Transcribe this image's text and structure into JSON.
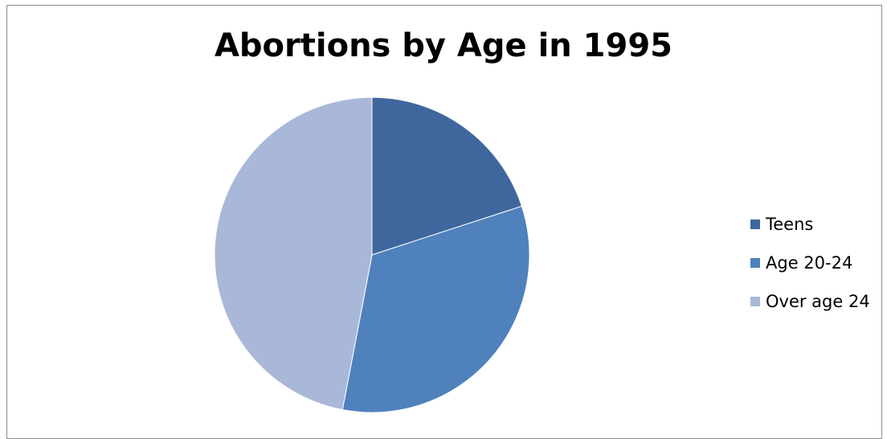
{
  "chart_data": {
    "type": "pie",
    "title": "Abortions by Age in 1995",
    "categories": [
      "Teens",
      "Age 20-24",
      "Over age 24"
    ],
    "values": [
      20,
      33,
      47
    ],
    "colors": [
      "#3f679e",
      "#4f81bd",
      "#a9b8d8"
    ],
    "start_angle_deg": 0,
    "direction": "clockwise",
    "legend_position": "right",
    "grid": false
  }
}
